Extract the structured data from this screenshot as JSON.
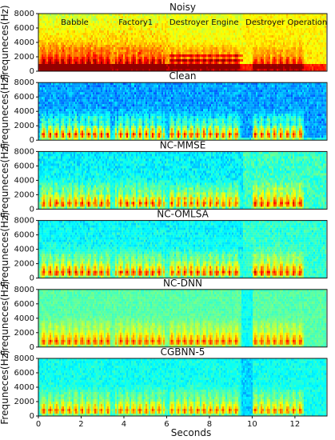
{
  "chart_data": {
    "type": "heatmap",
    "xlabel": "Seconds",
    "ylabel": "Frequneces(Hz)",
    "xlim": [
      0,
      13.5
    ],
    "ylim": [
      0,
      8000
    ],
    "x_ticks": [
      0,
      2,
      4,
      6,
      8,
      10,
      12
    ],
    "y_ticks": [
      0,
      2000,
      4000,
      6000,
      8000
    ],
    "colormap": "jet",
    "noise_labels": [
      "Babble",
      "Factory1",
      "Destroyer Engine",
      "Destroyer Operation"
    ],
    "panels": [
      {
        "title": "Noisy"
      },
      {
        "title": "Clean"
      },
      {
        "title": "NC-MMSE"
      },
      {
        "title": "NC-OMLSA"
      },
      {
        "title": "NC-DNN"
      },
      {
        "title": "CGBNN-5"
      }
    ]
  }
}
